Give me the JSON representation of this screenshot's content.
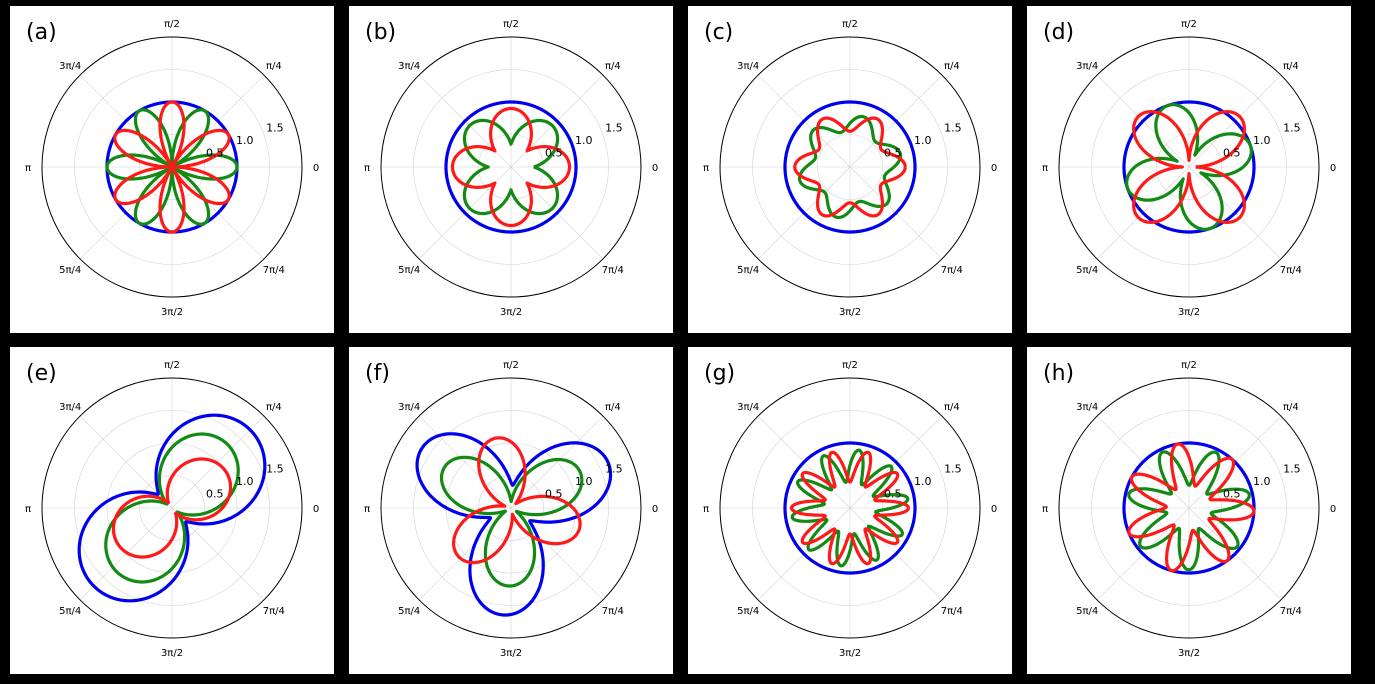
{
  "colors": {
    "background": "#000000",
    "panel": "#ffffff",
    "blue": "#0000ee",
    "green": "#138a13",
    "red": "#ff1a1a",
    "grid": "#d3d3d3"
  },
  "chart_data": [
    {
      "type": "line",
      "polar": true,
      "panel_label": "(a)",
      "rlim": [
        0,
        2.0
      ],
      "rticks": [
        "0.5",
        "1.0",
        "1.5"
      ],
      "theta_ticks": [
        "0",
        "π/4",
        "π/2",
        "3π/4",
        "π",
        "5π/4",
        "3π/2",
        "7π/4"
      ],
      "series": [
        {
          "color": "blue",
          "r": "const",
          "c": 1.0
        },
        {
          "color": "green",
          "r": "abs_cos",
          "n": 3,
          "phase": 0,
          "amp": 1.0
        },
        {
          "color": "red",
          "r": "abs_sin",
          "n": 3,
          "phase": 0,
          "amp": 1.0
        }
      ]
    },
    {
      "type": "line",
      "polar": true,
      "panel_label": "(b)",
      "rlim": [
        0,
        2.0
      ],
      "rticks": [
        "0.5",
        "1.0",
        "1.5"
      ],
      "theta_ticks": [
        "0",
        "π/4",
        "π/2",
        "3π/4",
        "π",
        "5π/4",
        "3π/2",
        "7π/4"
      ],
      "series": [
        {
          "color": "blue",
          "r": "const",
          "c": 1.0
        },
        {
          "color": "green",
          "r": "fourleaf",
          "base": 0.35,
          "amp": 0.55,
          "phase": 0.785
        },
        {
          "color": "red",
          "r": "fourleaf",
          "base": 0.35,
          "amp": 0.55,
          "phase": 0
        }
      ]
    },
    {
      "type": "line",
      "polar": true,
      "panel_label": "(c)",
      "rlim": [
        0,
        2.0
      ],
      "rticks": [
        "0.5",
        "1.0",
        "1.5"
      ],
      "theta_ticks": [
        "0",
        "π/4",
        "π/2",
        "3π/4",
        "π",
        "5π/4",
        "3π/2",
        "7π/4"
      ],
      "series": [
        {
          "color": "blue",
          "r": "const",
          "c": 1.0
        },
        {
          "color": "green",
          "r": "star",
          "n": 6,
          "base": 0.55,
          "amp": 0.25,
          "phase": 0.26
        },
        {
          "color": "red",
          "r": "star",
          "n": 6,
          "base": 0.55,
          "amp": 0.3,
          "phase": 0
        }
      ]
    },
    {
      "type": "line",
      "polar": true,
      "panel_label": "(d)",
      "rlim": [
        0,
        2.0
      ],
      "rticks": [
        "0.5",
        "1.0",
        "1.5"
      ],
      "theta_ticks": [
        "0",
        "π/4",
        "π/2",
        "3π/4",
        "π",
        "5π/4",
        "3π/2",
        "7π/4"
      ],
      "series": [
        {
          "color": "blue",
          "r": "const",
          "c": 1.0
        },
        {
          "color": "green",
          "r": "fourleaf",
          "base": 0.2,
          "amp": 0.8,
          "phase": 1.9
        },
        {
          "color": "red",
          "r": "fourleaf",
          "base": 0.1,
          "amp": 1.0,
          "phase": 0.785
        }
      ]
    },
    {
      "type": "line",
      "polar": true,
      "panel_label": "(e)",
      "rlim": [
        0,
        2.0
      ],
      "rticks": [
        "0.5",
        "1.0",
        "1.5"
      ],
      "theta_ticks": [
        "0",
        "π/4",
        "π/2",
        "3π/4",
        "π",
        "5π/4",
        "3π/2",
        "7π/4"
      ],
      "series": [
        {
          "color": "blue",
          "r": "lobes2",
          "base": 0.3,
          "amp": 1.4,
          "phase": 0.785
        },
        {
          "color": "green",
          "r": "lobes2",
          "base": 0.1,
          "amp": 1.2,
          "phase": 0.9
        },
        {
          "color": "red",
          "r": "lobes2",
          "base": 0.1,
          "amp": 0.9,
          "phase": 0.6
        }
      ]
    },
    {
      "type": "line",
      "polar": true,
      "panel_label": "(f)",
      "rlim": [
        0,
        2.0
      ],
      "rticks": [
        "0.5",
        "1.0",
        "1.5"
      ],
      "theta_ticks": [
        "0",
        "π/4",
        "π/2",
        "3π/4",
        "π",
        "5π/4",
        "3π/2",
        "7π/4"
      ],
      "series": [
        {
          "color": "blue",
          "r": "lobes3",
          "base": 0.35,
          "amp": 1.3,
          "phase": 0.45
        },
        {
          "color": "green",
          "r": "lobes3",
          "base": 0.1,
          "amp": 1.1,
          "phase": 0.5
        },
        {
          "color": "red",
          "r": "lobes3",
          "base": 0.1,
          "amp": 1.0,
          "phase": -0.3
        }
      ]
    },
    {
      "type": "line",
      "polar": true,
      "panel_label": "(g)",
      "rlim": [
        0,
        2.0
      ],
      "rticks": [
        "0.5",
        "1.0",
        "1.5"
      ],
      "theta_ticks": [
        "0",
        "π/4",
        "π/2",
        "3π/4",
        "π",
        "5π/4",
        "3π/2",
        "7π/4"
      ],
      "series": [
        {
          "color": "blue",
          "r": "const",
          "c": 1.0
        },
        {
          "color": "green",
          "r": "star",
          "n": 10,
          "base": 0.4,
          "amp": 0.5,
          "phase": 0.16
        },
        {
          "color": "red",
          "r": "star",
          "n": 10,
          "base": 0.4,
          "amp": 0.5,
          "phase": 0
        }
      ]
    },
    {
      "type": "line",
      "polar": true,
      "panel_label": "(h)",
      "rlim": [
        0,
        2.0
      ],
      "rticks": [
        "0.5",
        "1.0",
        "1.5"
      ],
      "theta_ticks": [
        "0",
        "π/4",
        "π/2",
        "3π/4",
        "π",
        "5π/4",
        "3π/2",
        "7π/4"
      ],
      "series": [
        {
          "color": "blue",
          "r": "const",
          "c": 1.0
        },
        {
          "color": "green",
          "r": "star",
          "n": 7,
          "base": 0.35,
          "amp": 0.6,
          "phase": 0.22
        },
        {
          "color": "red",
          "r": "star",
          "n": 7,
          "base": 0.35,
          "amp": 0.65,
          "phase": -0.05
        }
      ]
    }
  ]
}
